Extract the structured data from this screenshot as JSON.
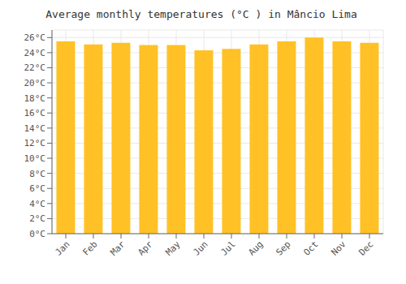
{
  "chart_data": {
    "type": "bar",
    "title": "Average monthly temperatures (°C ) in Mâncio Lima",
    "categories": [
      "Jan",
      "Feb",
      "Mar",
      "Apr",
      "May",
      "Jun",
      "Jul",
      "Aug",
      "Sep",
      "Oct",
      "Nov",
      "Dec"
    ],
    "values": [
      25.5,
      25.1,
      25.3,
      25.0,
      25.0,
      24.3,
      24.5,
      25.1,
      25.5,
      26.0,
      25.5,
      25.3
    ],
    "color": "#FFC125",
    "ylim": [
      0,
      27
    ],
    "yticks": [
      {
        "value": 0,
        "label": "0°C"
      },
      {
        "value": 2,
        "label": "2°C"
      },
      {
        "value": 4,
        "label": "4°C"
      },
      {
        "value": 6,
        "label": "6°C"
      },
      {
        "value": 8,
        "label": "8°C"
      },
      {
        "value": 10,
        "label": "10°C"
      },
      {
        "value": 12,
        "label": "12°C"
      },
      {
        "value": 14,
        "label": "14°C"
      },
      {
        "value": 16,
        "label": "16°C"
      },
      {
        "value": 18,
        "label": "18°C"
      },
      {
        "value": 20,
        "label": "20°C"
      },
      {
        "value": 22,
        "label": "22°C"
      },
      {
        "value": 24,
        "label": "24°C"
      },
      {
        "value": 26,
        "label": "26°C"
      }
    ],
    "grid": true
  }
}
